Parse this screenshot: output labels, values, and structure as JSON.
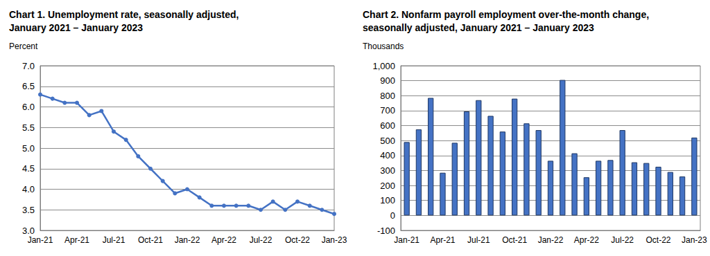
{
  "chart_data": [
    {
      "type": "line",
      "title": "Chart 1. Unemployment rate, seasonally adjusted,\nJanuary 2021 – January 2023",
      "ylabel": "Percent",
      "categories": [
        "Jan-21",
        null,
        null,
        "Apr-21",
        null,
        null,
        "Jul-21",
        null,
        null,
        "Oct-21",
        null,
        null,
        "Jan-22",
        null,
        null,
        "Apr-22",
        null,
        null,
        "Jul-22",
        null,
        null,
        "Oct-22",
        null,
        null,
        "Jan-23"
      ],
      "values": [
        6.3,
        6.2,
        6.1,
        6.1,
        5.8,
        5.9,
        5.4,
        5.2,
        4.8,
        4.5,
        4.2,
        3.9,
        4.0,
        3.8,
        3.6,
        3.6,
        3.6,
        3.6,
        3.5,
        3.7,
        3.5,
        3.7,
        3.6,
        3.5,
        3.4
      ],
      "color": "#4472c4",
      "marker": "circle",
      "ylim": [
        3,
        7
      ],
      "yticks": [
        {
          "value": 3,
          "label": "3.0"
        },
        3.5,
        {
          "value": 4,
          "label": "4.0"
        },
        4.5,
        {
          "value": 5,
          "label": "5.0"
        },
        5.5,
        {
          "value": 6,
          "label": "6.0"
        },
        6.5,
        {
          "value": 7,
          "label": "7.0"
        }
      ],
      "grid": true
    },
    {
      "type": "bar",
      "title": "Chart 2. Nonfarm payroll employment over-the-month change,\nseasonally adjusted, January 2021 – January 2023",
      "ylabel": "Thousands",
      "categories": [
        "Jan-21",
        null,
        null,
        "Apr-21",
        null,
        null,
        "Jul-21",
        null,
        null,
        "Oct-21",
        null,
        null,
        "Jan-22",
        null,
        null,
        "Apr-22",
        null,
        null,
        "Jul-22",
        null,
        null,
        "Oct-22",
        null,
        null,
        "Jan-23"
      ],
      "values": [
        490,
        575,
        785,
        285,
        485,
        695,
        770,
        665,
        560,
        780,
        615,
        570,
        365,
        905,
        415,
        255,
        365,
        370,
        570,
        355,
        350,
        325,
        290,
        260,
        520
      ],
      "color": "#4472c4",
      "ylim": [
        -100,
        1000
      ],
      "yticks": [
        -100,
        0,
        100,
        200,
        300,
        400,
        500,
        600,
        700,
        800,
        900,
        {
          "value": 1000,
          "label": "1,000"
        }
      ],
      "grid": true
    }
  ]
}
